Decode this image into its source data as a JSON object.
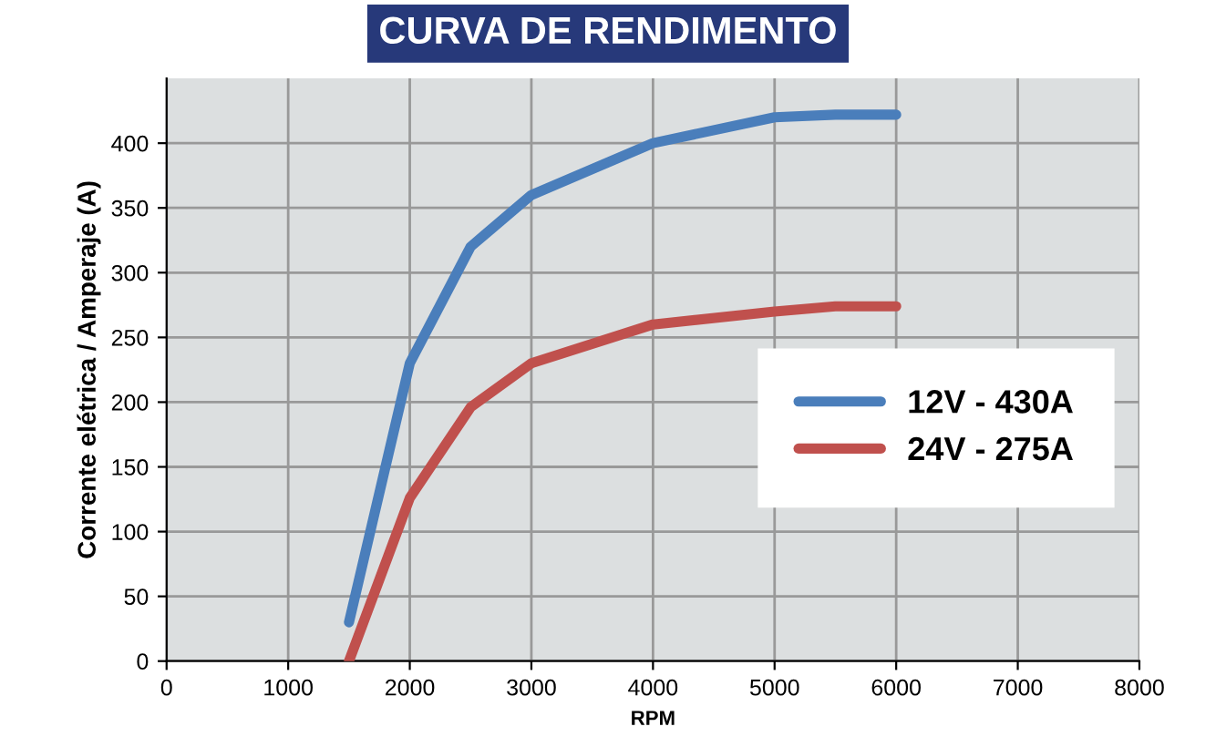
{
  "chart_data": {
    "type": "line",
    "title": "CURVA DE RENDIMENTO",
    "xlabel": "RPM",
    "ylabel": "Corrente elétrica / Amperaje (A)",
    "x": [
      1500,
      2000,
      2500,
      3000,
      4000,
      5000,
      5500,
      6000
    ],
    "series": [
      {
        "name": "12V - 430A",
        "color": "#4a7ebb",
        "values": [
          30,
          230,
          320,
          360,
          400,
          420,
          422,
          422
        ]
      },
      {
        "name": "24V - 275A",
        "color": "#c0504d",
        "values": [
          0,
          126,
          196,
          230,
          260,
          270,
          274,
          274
        ]
      }
    ],
    "xlim": [
      0,
      8000
    ],
    "xticks": [
      0,
      1000,
      2000,
      3000,
      4000,
      5000,
      6000,
      7000,
      8000
    ],
    "ylim": [
      0,
      450
    ],
    "yticks": [
      0,
      50,
      100,
      150,
      200,
      250,
      300,
      350,
      400
    ],
    "grid": true,
    "legend": "center right",
    "marker": "none",
    "line_style": "solid"
  }
}
